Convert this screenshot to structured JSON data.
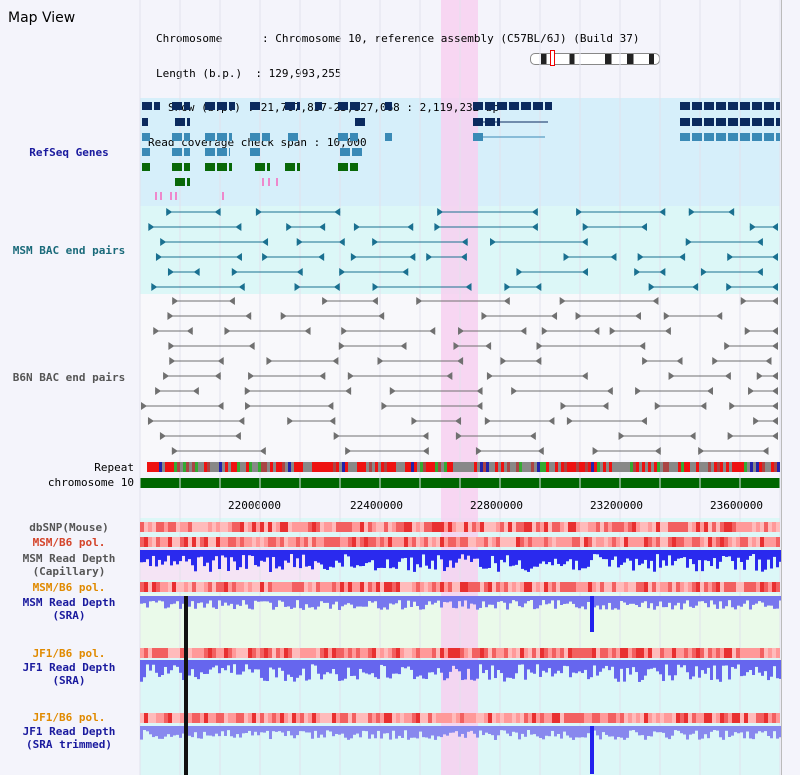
{
  "app": {
    "title": "Map View"
  },
  "info": {
    "chromosome_label": "Chromosome",
    "chromosome_value": "Chromosome 10, reference assembly (C57BL/6J) (Build 37)",
    "length_label": "Length (b.p.)",
    "length_value": "129,993,255",
    "show_label": "Show (b.p.)",
    "show_value": "21,707,837-23,827,068 : 2,119,232 bp",
    "coverage_label": "Read coverage check span",
    "coverage_value": "10,000"
  },
  "tracks": {
    "refseq": "RefSeq Genes",
    "msm_bac": "MSM BAC end pairs",
    "b6n_bac": "B6N BAC end pairs",
    "repeat": "Repeat",
    "chromosome": "chromosome 10",
    "dbsnp": "dbSNP(Mouse)",
    "msm_b6_pol_1": "MSM/B6 pol.",
    "msm_depth_cap_1": "MSM Read Depth",
    "msm_depth_cap_2": "(Capillary)",
    "msm_b6_pol_2": "MSM/B6 pol.",
    "msm_depth_sra_1": "MSM Read Depth",
    "msm_depth_sra_2": "(SRA)",
    "jf1_b6_pol_1": "JF1/B6 pol.",
    "jf1_depth_sra_1": "JF1 Read Depth",
    "jf1_depth_sra_2": "(SRA)",
    "jf1_b6_pol_2": "JF1/B6 pol.",
    "jf1_depth_trim_1": "JF1 Read Depth",
    "jf1_depth_trim_2": "(SRA trimmed)"
  },
  "axis": {
    "ticks": [
      "22000000",
      "22400000",
      "22800000",
      "23200000",
      "23600000"
    ]
  },
  "colors": {
    "refseq_bg": "#d6effa",
    "msm_bg": "#dcf7f7",
    "highlight": "#f7d0f0",
    "chromosome_bar": "#006600",
    "depth_blue": "#2020e0"
  }
}
